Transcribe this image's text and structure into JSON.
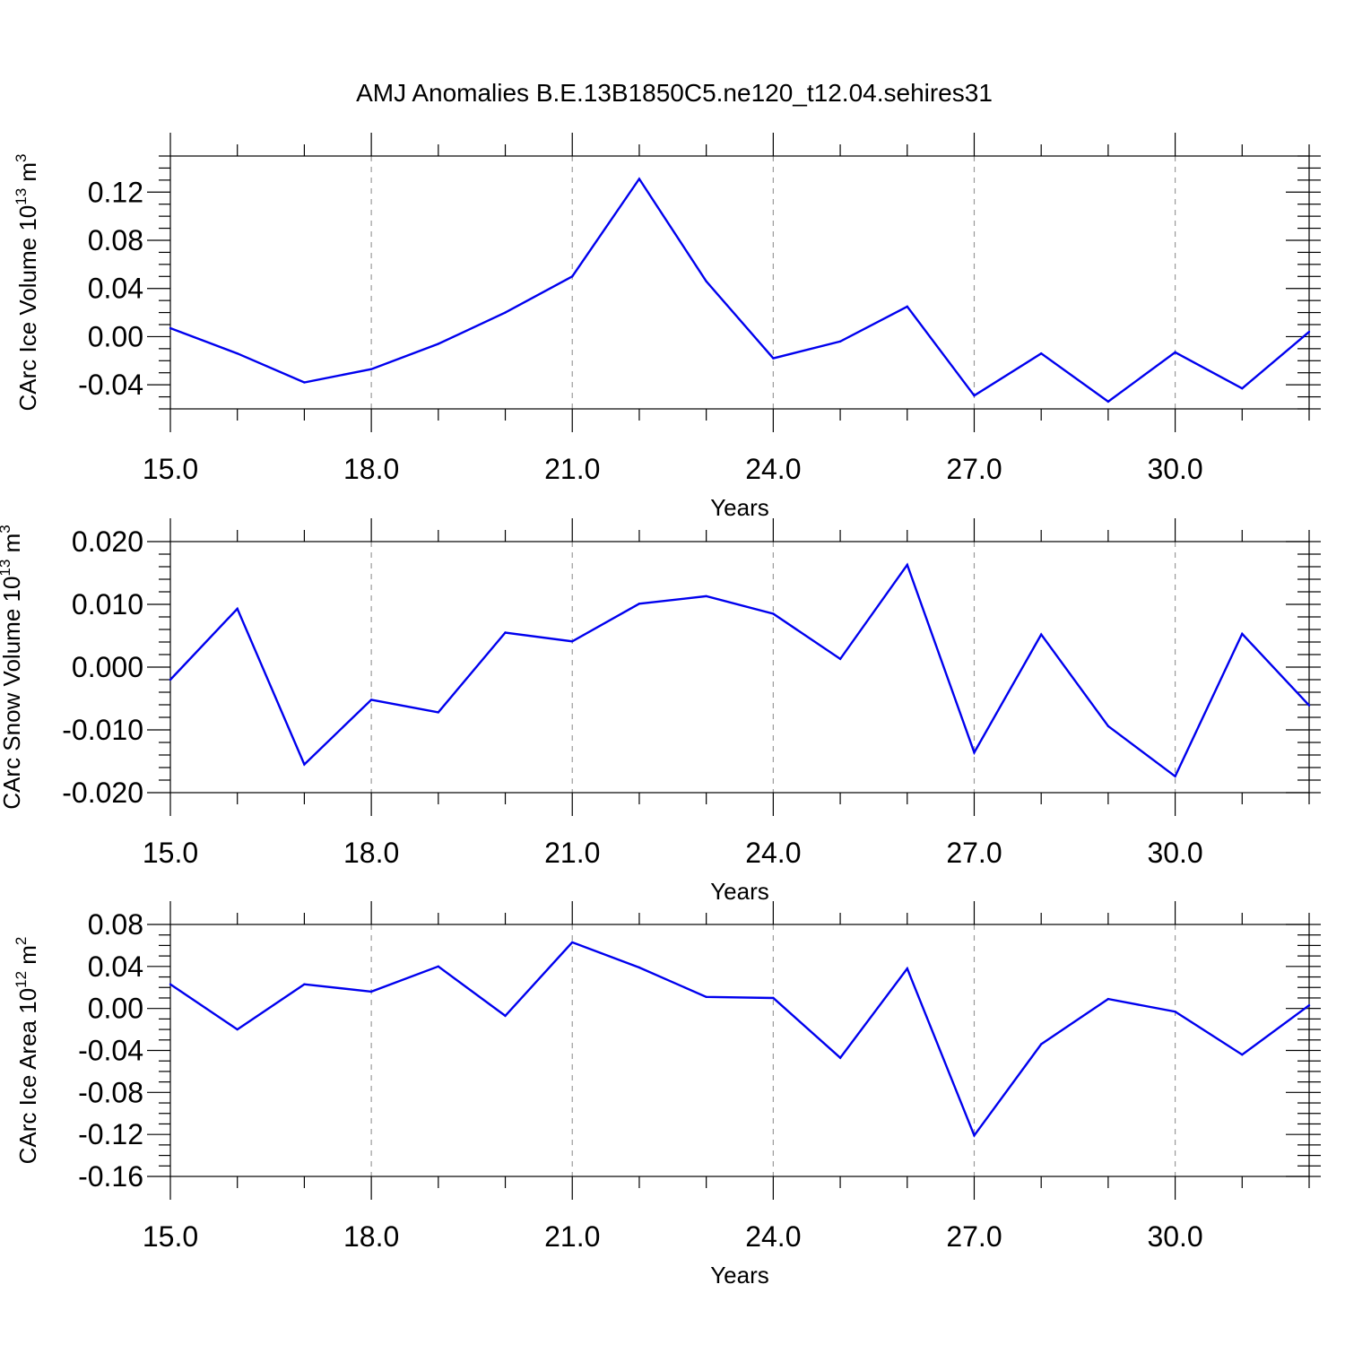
{
  "page_title": "AMJ Anomalies B.E.13B1850C5.ne120_t12.04.sehires31",
  "colors": {
    "series": "#0000ee",
    "grid": "#999999",
    "axis": "#000000"
  },
  "chart_data": [
    {
      "type": "line",
      "ylabel": "CArc Ice Volume 10",
      "ylabel_sup": "13",
      "ylabel_unit": "m",
      "ylabel_unit_sup": "3",
      "xlabel": "Years",
      "xlim": [
        15,
        32
      ],
      "ylim": [
        -0.06,
        0.15
      ],
      "x_ticks": [
        15,
        18,
        21,
        24,
        27,
        30
      ],
      "x_tick_labels": [
        "15.0",
        "18.0",
        "21.0",
        "24.0",
        "27.0",
        "30.0"
      ],
      "y_ticks": [
        0.12,
        0.08,
        0.04,
        0.0,
        -0.04
      ],
      "y_tick_labels": [
        "0.12",
        "0.08",
        "0.04",
        "0.00",
        "-0.04"
      ],
      "y_minor_step": 0.01,
      "grid": "vertical dashed",
      "x": [
        15,
        16,
        17,
        18,
        19,
        20,
        21,
        22,
        23,
        24,
        25,
        26,
        27,
        28,
        29,
        30,
        31,
        32
      ],
      "values": [
        0.007,
        -0.014,
        -0.038,
        -0.027,
        -0.006,
        0.02,
        0.05,
        0.131,
        0.046,
        -0.018,
        -0.004,
        0.025,
        -0.049,
        -0.014,
        -0.054,
        -0.013,
        -0.043,
        0.004
      ]
    },
    {
      "type": "line",
      "ylabel": "CArc Snow Volume 10",
      "ylabel_sup": "13",
      "ylabel_unit": "m",
      "ylabel_unit_sup": "3",
      "xlabel": "Years",
      "xlim": [
        15,
        32
      ],
      "ylim": [
        -0.02,
        0.02
      ],
      "x_ticks": [
        15,
        18,
        21,
        24,
        27,
        30
      ],
      "x_tick_labels": [
        "15.0",
        "18.0",
        "21.0",
        "24.0",
        "27.0",
        "30.0"
      ],
      "y_ticks": [
        0.02,
        0.01,
        0.0,
        -0.01,
        -0.02
      ],
      "y_tick_labels": [
        "0.020",
        "0.010",
        "0.000",
        "-0.010",
        "-0.020"
      ],
      "y_minor_step": 0.002,
      "grid": "vertical dashed",
      "x": [
        15,
        16,
        17,
        18,
        19,
        20,
        21,
        22,
        23,
        24,
        25,
        26,
        27,
        28,
        29,
        30,
        31,
        32
      ],
      "values": [
        -0.002,
        0.0093,
        -0.0155,
        -0.0052,
        -0.0072,
        0.0055,
        0.0041,
        0.0101,
        0.0113,
        0.0085,
        0.0013,
        0.0163,
        -0.0136,
        0.0052,
        -0.0094,
        -0.0174,
        0.0053,
        -0.0061
      ]
    },
    {
      "type": "line",
      "ylabel": "CArc Ice Area 10",
      "ylabel_sup": "12",
      "ylabel_unit": "m",
      "ylabel_unit_sup": "2",
      "xlabel": "Years",
      "xlim": [
        15,
        32
      ],
      "ylim": [
        -0.16,
        0.08
      ],
      "x_ticks": [
        15,
        18,
        21,
        24,
        27,
        30
      ],
      "x_tick_labels": [
        "15.0",
        "18.0",
        "21.0",
        "24.0",
        "27.0",
        "30.0"
      ],
      "y_ticks": [
        0.08,
        0.04,
        0.0,
        -0.04,
        -0.08,
        -0.12,
        -0.16
      ],
      "y_tick_labels": [
        "0.08",
        "0.04",
        "0.00",
        "-0.04",
        "-0.08",
        "-0.12",
        "-0.16"
      ],
      "y_minor_step": 0.01,
      "grid": "vertical dashed",
      "x": [
        15,
        16,
        17,
        18,
        19,
        20,
        21,
        22,
        23,
        24,
        25,
        26,
        27,
        28,
        29,
        30,
        31,
        32
      ],
      "values": [
        0.023,
        -0.02,
        0.023,
        0.016,
        0.04,
        -0.007,
        0.063,
        0.039,
        0.011,
        0.01,
        -0.047,
        0.038,
        -0.121,
        -0.034,
        0.009,
        -0.003,
        -0.044,
        0.003
      ]
    }
  ]
}
